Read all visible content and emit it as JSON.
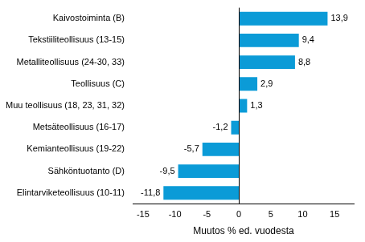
{
  "chart_data": {
    "type": "bar",
    "orientation": "horizontal",
    "categories": [
      "Kaivostoiminta (B)",
      "Tekstiiliteollisuus (13-15)",
      "Metalliteollisuus (24-30, 33)",
      "Teollisuus (C)",
      "Muu teollisuus (18, 23, 31, 32)",
      "Metsäteollisuus (16-17)",
      "Kemianteollisuus (19-22)",
      "Sähköntuotanto (D)",
      "Elintarviketeollisuus (10-11)"
    ],
    "values": [
      13.9,
      9.4,
      8.8,
      2.9,
      1.3,
      -1.2,
      -5.7,
      -9.5,
      -11.8
    ],
    "value_labels": [
      "13,9",
      "9,4",
      "8,8",
      "2,9",
      "1,3",
      "-1,2",
      "-5,7",
      "-9,5",
      "-11,8"
    ],
    "data_labels": true,
    "color": "#0b9bd7",
    "x_label": "Muutos % ed. vuodesta",
    "xlim": [
      -16.5,
      18
    ],
    "xticks": [
      -15,
      -10,
      -5,
      0,
      5,
      10,
      15
    ],
    "grid": false
  }
}
